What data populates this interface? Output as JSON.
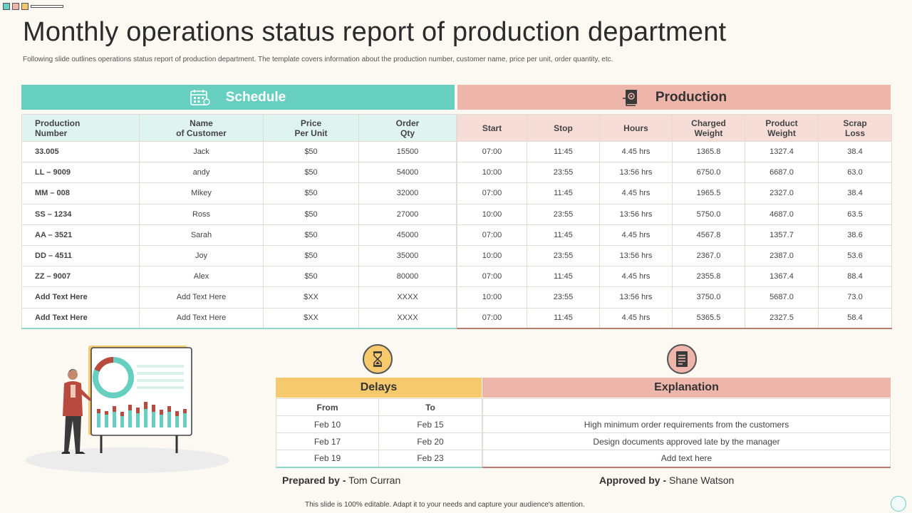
{
  "title": "Monthly operations status report of production department",
  "subtitle": "Following slide outlines operations status report of production department. The template covers information about the production number, customer name, price per unit, order quantity, etc.",
  "schedule": {
    "title": "Schedule",
    "icon": "calendar-icon",
    "headers": [
      [
        "Production",
        "Number"
      ],
      [
        "Name",
        "of Customer"
      ],
      [
        "Price",
        "Per Unit"
      ],
      [
        "Order",
        "Qty"
      ]
    ],
    "rows": [
      [
        "33.005",
        "Jack",
        "$50",
        "15500"
      ],
      [
        "LL – 9009",
        "andy",
        "$50",
        "54000"
      ],
      [
        "MM – 008",
        "Mikey",
        "$50",
        "32000"
      ],
      [
        "SS – 1234",
        "Ross",
        "$50",
        "27000"
      ],
      [
        "AA – 3521",
        "Sarah",
        "$50",
        "45000"
      ],
      [
        "DD – 4511",
        "Joy",
        "$50",
        "35000"
      ],
      [
        "ZZ – 9007",
        "Alex",
        "$50",
        "80000"
      ],
      [
        "Add Text Here",
        "Add Text Here",
        "$XX",
        "XXXX"
      ],
      [
        "Add Text Here",
        "Add Text Here",
        "$XX",
        "XXXX"
      ]
    ]
  },
  "production": {
    "title": "Production",
    "icon": "gear-document-icon",
    "headers": [
      [
        "Start"
      ],
      [
        "Stop"
      ],
      [
        "Hours"
      ],
      [
        "Charged",
        "Weight"
      ],
      [
        "Product",
        "Weight"
      ],
      [
        "Scrap",
        "Loss"
      ]
    ],
    "rows": [
      [
        "07:00",
        "11:45",
        "4.45 hrs",
        "1365.8",
        "1327.4",
        "38.4"
      ],
      [
        "10:00",
        "23:55",
        "13:56 hrs",
        "6750.0",
        "6687.0",
        "63.0"
      ],
      [
        "07:00",
        "11:45",
        "4.45 hrs",
        "1965.5",
        "2327.0",
        "38.4"
      ],
      [
        "10:00",
        "23:55",
        "13:56 hrs",
        "5750.0",
        "4687.0",
        "63.5"
      ],
      [
        "07:00",
        "11:45",
        "4.45 hrs",
        "4567.8",
        "1357.7",
        "38.6"
      ],
      [
        "10:00",
        "23:55",
        "13:56 hrs",
        "2367.0",
        "2387.0",
        "53.6"
      ],
      [
        "07:00",
        "11:45",
        "4.45 hrs",
        "2355.8",
        "1367.4",
        "88.4"
      ],
      [
        "10:00",
        "23:55",
        "13:56 hrs",
        "3750.0",
        "5687.0",
        "73.0"
      ],
      [
        "07:00",
        "11:45",
        "4.45 hrs",
        "5365.5",
        "2327.5",
        "58.4"
      ]
    ]
  },
  "delays": {
    "title": "Delays",
    "icon": "hourglass-icon",
    "headers": [
      "From",
      "To"
    ],
    "rows": [
      [
        "Feb 10",
        "Feb 15"
      ],
      [
        "Feb 17",
        "Feb 20"
      ],
      [
        "Feb 19",
        "Feb 23"
      ]
    ]
  },
  "explanation": {
    "title": "Explanation",
    "icon": "document-icon",
    "rows": [
      "High minimum order requirements from the customers",
      "Design documents approved late by the manager",
      "Add text here"
    ]
  },
  "prepared": {
    "label": "Prepared by -",
    "name": "Tom Curran"
  },
  "approved": {
    "label": "Approved by -",
    "name": "Shane Watson"
  },
  "footer": "This slide is 100% editable. Adapt it to your needs and capture your audience's attention.",
  "colors": {
    "teal": "#67cfc0",
    "salmon": "#eeb5ab",
    "yellow": "#f6ca6c",
    "background": "#fcf8f2"
  }
}
